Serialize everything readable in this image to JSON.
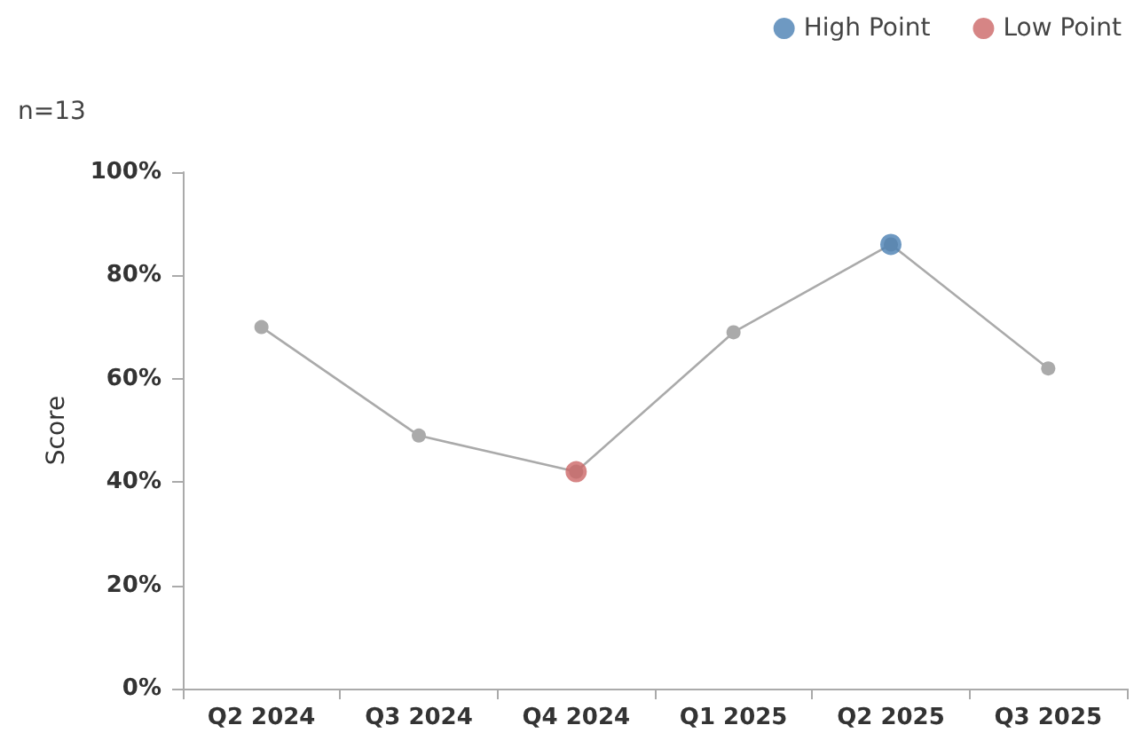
{
  "chart_data": {
    "type": "line",
    "ylabel": "Score",
    "annotations": [
      "n=13"
    ],
    "categories": [
      "Q2 2024",
      "Q3 2024",
      "Q4 2024",
      "Q1 2025",
      "Q2 2025",
      "Q3 2025"
    ],
    "series": [
      {
        "color": "#aaaaaa",
        "values": [
          70,
          49,
          42,
          69,
          86,
          62
        ]
      },
      {
        "type": "scatter",
        "name": "High Point",
        "color": "#4a80b3",
        "x": [
          "Q2 2025"
        ],
        "values": [
          86
        ]
      },
      {
        "type": "scatter",
        "name": "Low Point",
        "color": "#cc6666",
        "x": [
          "Q4 2024"
        ],
        "values": [
          42
        ]
      }
    ],
    "ylim": [
      0,
      100
    ],
    "yticks": [
      {
        "value": 0,
        "label": "0%"
      },
      {
        "value": 20,
        "label": "20%"
      },
      {
        "value": 40,
        "label": "40%"
      },
      {
        "value": 60,
        "label": "60%"
      },
      {
        "value": 80,
        "label": "80%"
      },
      {
        "value": 100,
        "label": "100%"
      }
    ],
    "grid": false,
    "legend": "top right",
    "marker": "circle",
    "line_style": "solid"
  }
}
